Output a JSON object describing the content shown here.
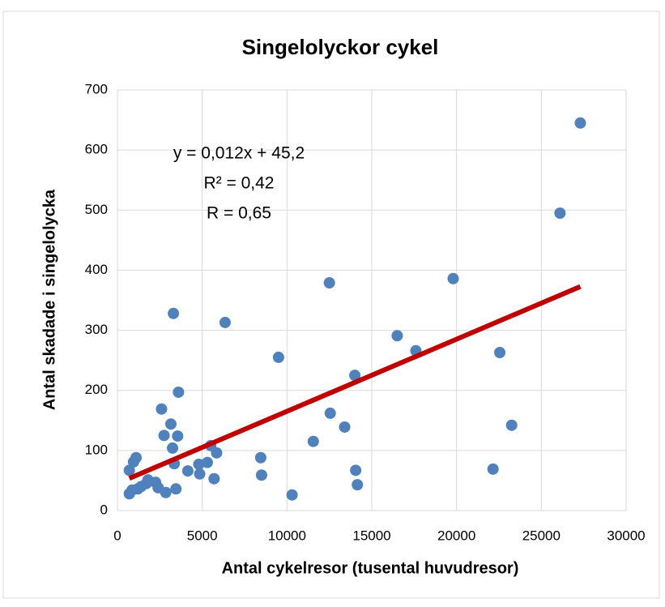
{
  "chart_data": {
    "type": "scatter",
    "title": "Singelolyckor cykel",
    "x_label": "Antal cykelresor (tusental huvudresor)",
    "y_label": "Antal skadade i singelolycka",
    "annotations": [
      "y = 0,012x + 45,2",
      "R² = 0,42",
      "R = 0,65"
    ],
    "xlim": [
      0,
      30000
    ],
    "xticks": [
      0,
      5000,
      10000,
      15000,
      20000,
      25000,
      30000
    ],
    "ylim": [
      0,
      700
    ],
    "yticks": [
      0,
      100,
      200,
      300,
      400,
      500,
      600,
      700
    ],
    "grid": true,
    "series": [
      {
        "color": "#4f81bd",
        "x": [
          700,
          700,
          860,
          950,
          1100,
          1200,
          1400,
          1700,
          1800,
          2250,
          2400,
          2600,
          2750,
          2850,
          3150,
          3250,
          3300,
          3350,
          3450,
          3550,
          3600,
          4150,
          4800,
          4850,
          5300,
          5500,
          5700,
          5850,
          6350,
          8450,
          8500,
          9500,
          10300,
          11550,
          12500,
          12550,
          13400,
          14000,
          14050,
          14150,
          16500,
          17600,
          19800,
          22150,
          22550,
          23250,
          26100,
          27300
        ],
        "values": [
          28,
          67,
          34,
          81,
          88,
          36,
          40,
          45,
          51,
          47,
          38,
          169,
          125,
          30,
          144,
          104,
          328,
          78,
          36,
          124,
          197,
          66,
          77,
          61,
          80,
          108,
          53,
          96,
          313,
          88,
          59,
          255,
          26,
          115,
          379,
          162,
          139,
          225,
          67,
          43,
          291,
          266,
          386,
          69,
          263,
          142,
          495,
          645
        ]
      }
    ],
    "trendline": {
      "color": "#c00000",
      "x": [
        700,
        27300
      ],
      "values": [
        53.6,
        372.8
      ]
    }
  }
}
